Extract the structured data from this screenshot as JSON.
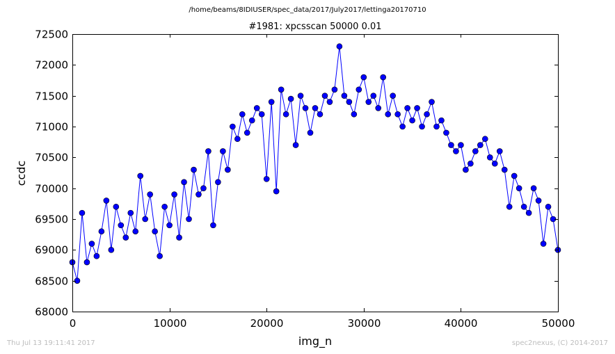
{
  "header": {
    "supertitle": "/home/beams/8IDIUSER/spec_data/2017/July2017/lettinga20170710",
    "title": "#1981: xpcsscan 50000 0.01"
  },
  "footer": {
    "left": "Thu Jul 13 19:11:41 2017",
    "right": "spec2nexus, (C) 2014-2017"
  },
  "chart_data": {
    "type": "line",
    "title": "#1981: xpcsscan 50000 0.01",
    "xlabel": "img_n",
    "ylabel": "ccdc",
    "xlim": [
      0,
      50000
    ],
    "ylim": [
      68000,
      72500
    ],
    "xticks": [
      "0",
      "10000",
      "20000",
      "30000",
      "40000",
      "50000"
    ],
    "yticks": [
      "68000",
      "68500",
      "69000",
      "69500",
      "70000",
      "70500",
      "71000",
      "71500",
      "72000",
      "72500"
    ],
    "marker": "circle",
    "color": "#0000ff",
    "series": [
      {
        "x": [
          0,
          500,
          1000,
          1500,
          2000,
          2500,
          3000,
          3500,
          4000,
          4500,
          5000,
          5500,
          6000,
          6500,
          7000,
          7500,
          8000,
          8500,
          9000,
          9500,
          10000,
          10500,
          11000,
          11500,
          12000,
          12500,
          13000,
          13500,
          14000,
          14500,
          15000,
          15500,
          16000,
          16500,
          17000,
          17500,
          18000,
          18500,
          19000,
          19500,
          20000,
          20500,
          21000,
          21500,
          22000,
          22500,
          23000,
          23500,
          24000,
          24500,
          25000,
          25500,
          26000,
          26500,
          27000,
          27500,
          28000,
          28500,
          29000,
          29500,
          30000,
          30500,
          31000,
          31500,
          32000,
          32500,
          33000,
          33500,
          34000,
          34500,
          35000,
          35500,
          36000,
          36500,
          37000,
          37500,
          38000,
          38500,
          39000,
          39500,
          40000,
          40500,
          41000,
          41500,
          42000,
          42500,
          43000,
          43500,
          44000,
          44500,
          45000,
          45500,
          46000,
          46500,
          47000,
          47500,
          48000,
          48500,
          49000,
          49500,
          50000
        ],
        "values": [
          68800,
          68500,
          69600,
          68800,
          69100,
          68900,
          69300,
          69800,
          69000,
          69700,
          69400,
          69200,
          69600,
          69300,
          70200,
          69500,
          69900,
          69300,
          68900,
          69700,
          69400,
          69900,
          69200,
          70100,
          69500,
          70300,
          69900,
          70000,
          70600,
          69400,
          70100,
          70600,
          70300,
          71000,
          70800,
          71200,
          70900,
          71100,
          71300,
          71200,
          70150,
          71400,
          69950,
          71600,
          71200,
          71450,
          70700,
          71500,
          71300,
          70900,
          71300,
          71200,
          71500,
          71400,
          71600,
          72300,
          71500,
          71400,
          71200,
          71600,
          71800,
          71400,
          71500,
          71300,
          71800,
          71200,
          71500,
          71200,
          71000,
          71300,
          71100,
          71300,
          71000,
          71200,
          71400,
          71000,
          71100,
          70900,
          70700,
          70600,
          70700,
          70300,
          70400,
          70600,
          70700,
          70800,
          70500,
          70400,
          70600,
          70300,
          69700,
          70200,
          70000,
          69700,
          69600,
          70000,
          69800,
          69100,
          69700,
          69500,
          69000
        ]
      }
    ]
  }
}
